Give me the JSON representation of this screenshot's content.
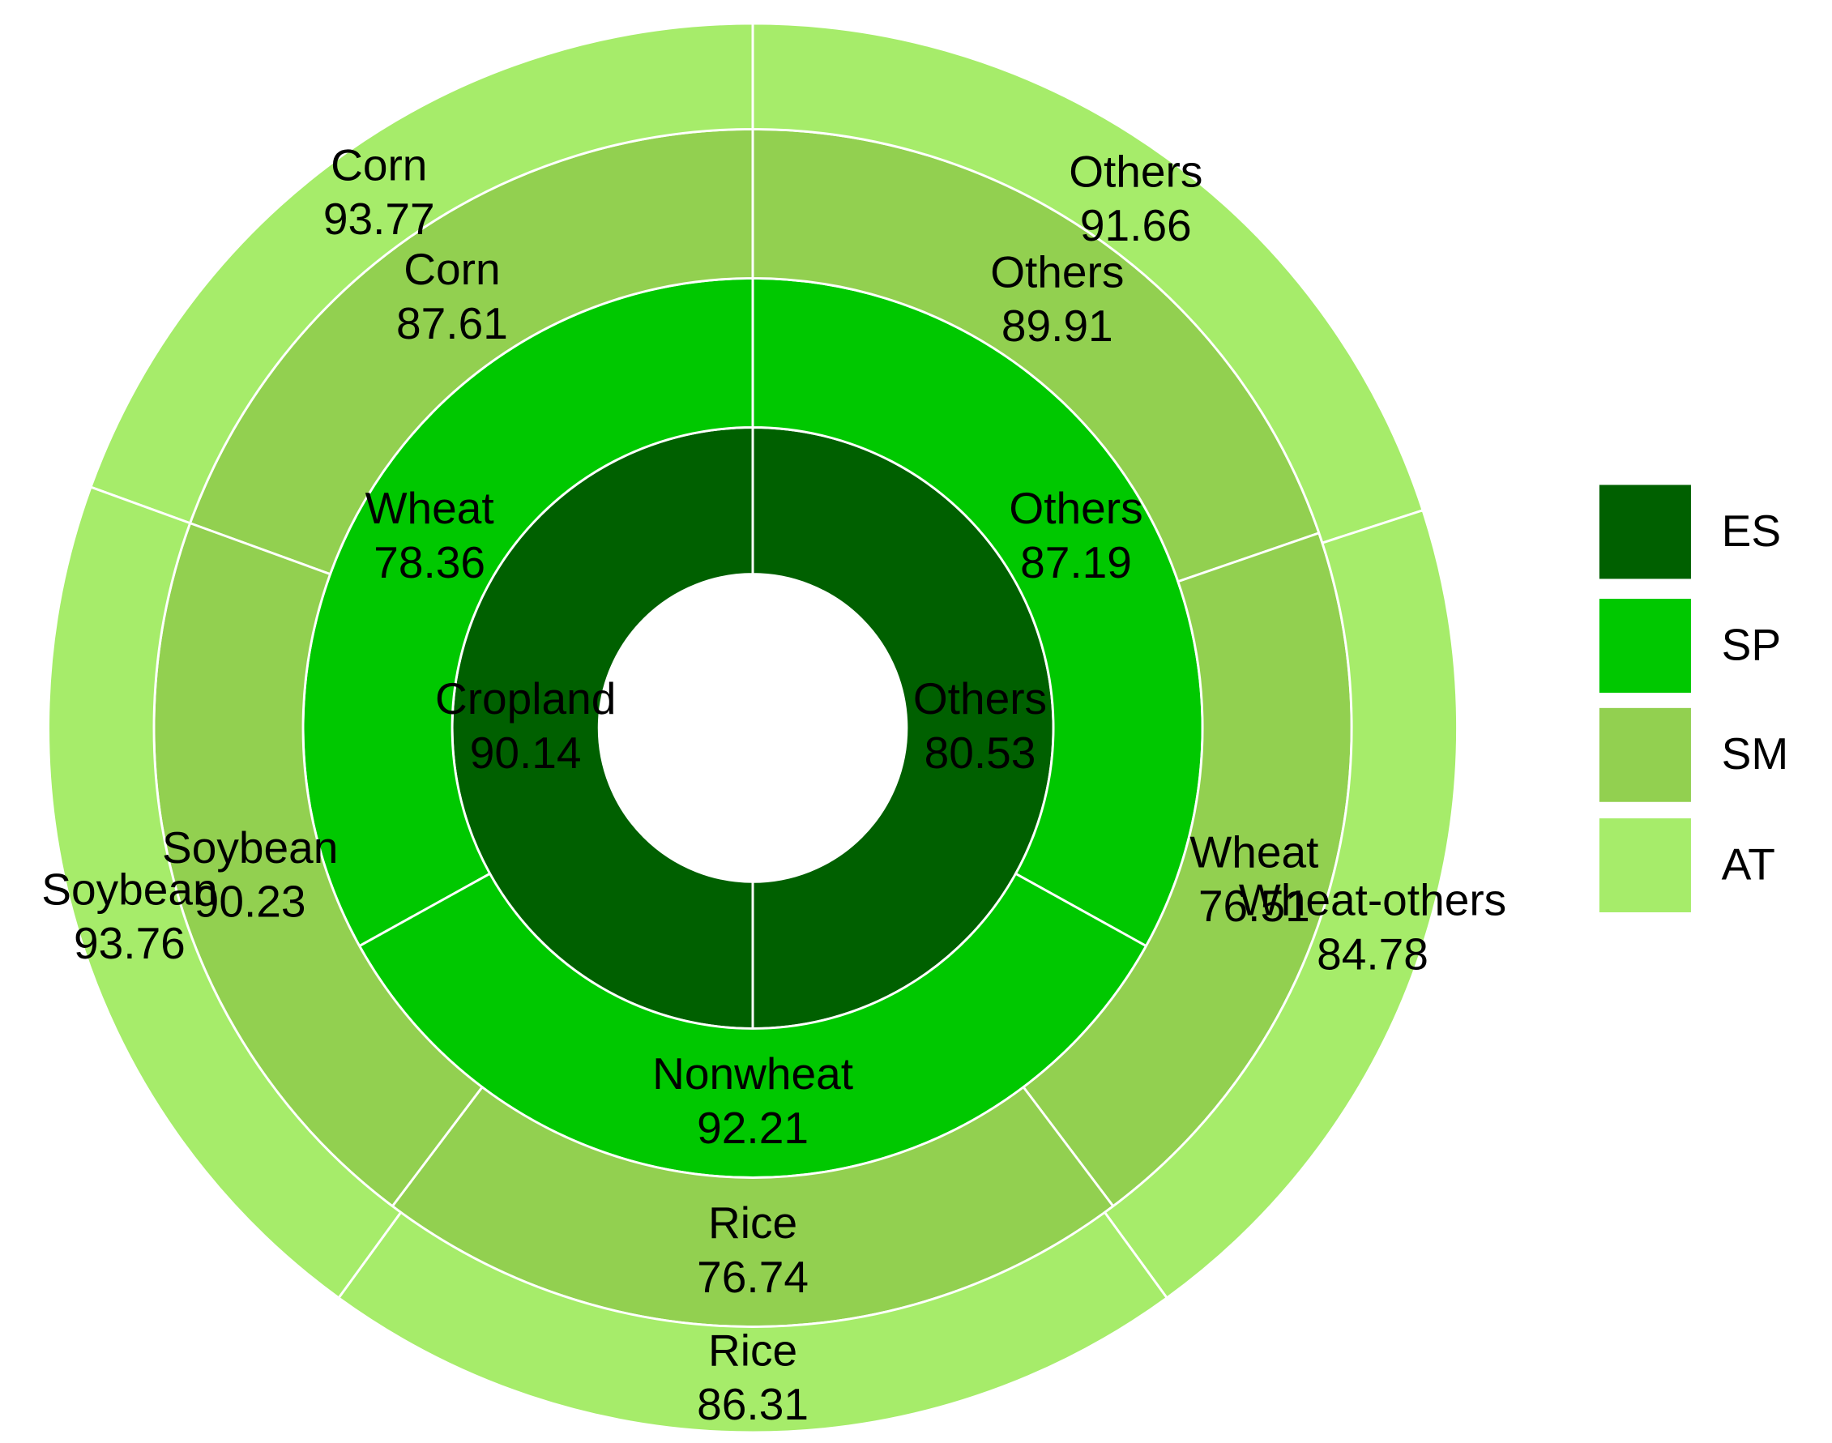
{
  "chart_data": {
    "type": "sunburst",
    "rings": [
      {
        "name": "ES",
        "color": "#006000",
        "segments": [
          {
            "label": "Cropland",
            "value": 90.14
          },
          {
            "label": "Others",
            "value": 80.53
          }
        ]
      },
      {
        "name": "SP",
        "color": "#00c800",
        "segments": [
          {
            "label": "Wheat",
            "value": 78.36
          },
          {
            "label": "Others",
            "value": 87.19
          },
          {
            "label": "Nonwheat",
            "value": 92.21
          }
        ]
      },
      {
        "name": "SM",
        "color": "#92d050",
        "segments": [
          {
            "label": "Corn",
            "value": 87.61
          },
          {
            "label": "Others",
            "value": 89.91
          },
          {
            "label": "Wheat",
            "value": 76.51
          },
          {
            "label": "Rice",
            "value": 76.74
          },
          {
            "label": "Soybean",
            "value": 90.23
          }
        ]
      },
      {
        "name": "AT",
        "color": "#a6ec6a",
        "segments": [
          {
            "label": "Corn",
            "value": 93.77
          },
          {
            "label": "Others",
            "value": 91.66
          },
          {
            "label": "Wheat-others",
            "value": 84.78
          },
          {
            "label": "Rice",
            "value": 86.31
          },
          {
            "label": "Soybean",
            "value": 93.76
          }
        ]
      }
    ]
  }
}
